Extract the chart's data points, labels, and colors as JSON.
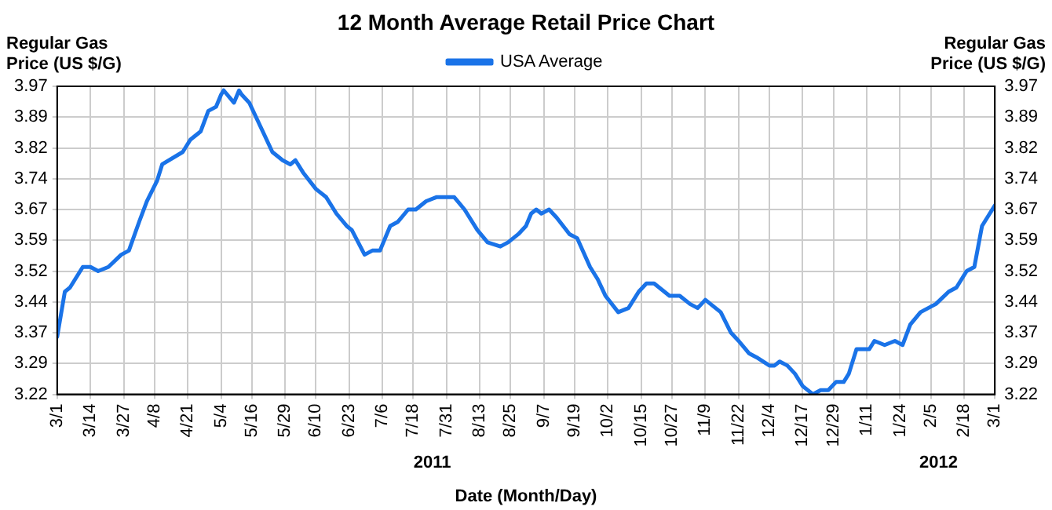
{
  "chart_data": {
    "type": "line",
    "title": "12 Month Average Retail Price Chart",
    "ylabel": "Regular Gas\nPrice (US $/G)",
    "y2label": "Regular Gas\nPrice (US $/G)",
    "xlabel": "Date (Month/Day)",
    "legend": "top",
    "grid": true,
    "marker": "none",
    "line_style": "solid",
    "xlim": [
      "2011-03-01",
      "2012-03-01"
    ],
    "xticks": [
      {
        "value": "2011-03-01",
        "label": "3/1"
      },
      {
        "value": "2011-03-14",
        "label": "3/14"
      },
      {
        "value": "2011-03-27",
        "label": "3/27"
      },
      {
        "value": "2011-04-08",
        "label": "4/8"
      },
      {
        "value": "2011-04-21",
        "label": "4/21"
      },
      {
        "value": "2011-05-04",
        "label": "5/4"
      },
      {
        "value": "2011-05-16",
        "label": "5/16"
      },
      {
        "value": "2011-05-29",
        "label": "5/29"
      },
      {
        "value": "2011-06-10",
        "label": "6/10"
      },
      {
        "value": "2011-06-23",
        "label": "6/23"
      },
      {
        "value": "2011-07-06",
        "label": "7/6"
      },
      {
        "value": "2011-07-18",
        "label": "7/18"
      },
      {
        "value": "2011-07-31",
        "label": "7/31"
      },
      {
        "value": "2011-08-13",
        "label": "8/13"
      },
      {
        "value": "2011-08-25",
        "label": "8/25"
      },
      {
        "value": "2011-09-07",
        "label": "9/7"
      },
      {
        "value": "2011-09-19",
        "label": "9/19"
      },
      {
        "value": "2011-10-02",
        "label": "10/2"
      },
      {
        "value": "2011-10-15",
        "label": "10/15"
      },
      {
        "value": "2011-10-27",
        "label": "10/27"
      },
      {
        "value": "2011-11-09",
        "label": "11/9"
      },
      {
        "value": "2011-11-22",
        "label": "11/22"
      },
      {
        "value": "2011-12-04",
        "label": "12/4"
      },
      {
        "value": "2011-12-17",
        "label": "12/17"
      },
      {
        "value": "2011-12-29",
        "label": "12/29"
      },
      {
        "value": "2012-01-11",
        "label": "1/11"
      },
      {
        "value": "2012-01-24",
        "label": "1/24"
      },
      {
        "value": "2012-02-05",
        "label": "2/5"
      },
      {
        "value": "2012-02-18",
        "label": "2/18"
      },
      {
        "value": "2012-03-01",
        "label": "3/1"
      }
    ],
    "ylim": [
      3.22,
      3.97
    ],
    "yticks": [
      3.22,
      {
        "value": 3.295,
        "label": "3.29"
      },
      3.37,
      {
        "value": 3.445,
        "label": "3.44"
      },
      3.52,
      {
        "value": 3.595,
        "label": "3.59"
      },
      3.67,
      {
        "value": 3.745,
        "label": "3.74"
      },
      3.82,
      {
        "value": 3.895,
        "label": "3.89"
      },
      3.97
    ],
    "y2lim": [
      3.22,
      3.97
    ],
    "y2ticks": [
      3.22,
      {
        "value": 3.295,
        "label": "3.29"
      },
      3.37,
      {
        "value": 3.445,
        "label": "3.44"
      },
      3.52,
      {
        "value": 3.595,
        "label": "3.59"
      },
      3.67,
      {
        "value": 3.745,
        "label": "3.74"
      },
      3.82,
      {
        "value": 3.895,
        "label": "3.89"
      },
      3.97
    ],
    "annotations": [
      "2011",
      "2012"
    ],
    "series": [
      {
        "name": "USA Average",
        "color": "#1a73e8",
        "x": [
          "2011-03-01",
          "2011-03-04",
          "2011-03-06",
          "2011-03-11",
          "2011-03-14",
          "2011-03-17",
          "2011-03-21",
          "2011-03-26",
          "2011-03-29",
          "2011-04-02",
          "2011-04-05",
          "2011-04-09",
          "2011-04-11",
          "2011-04-19",
          "2011-04-22",
          "2011-04-26",
          "2011-04-29",
          "2011-05-02",
          "2011-05-04",
          "2011-05-05",
          "2011-05-09",
          "2011-05-11",
          "2011-05-12",
          "2011-05-15",
          "2011-05-21",
          "2011-05-24",
          "2011-05-28",
          "2011-05-31",
          "2011-06-02",
          "2011-06-05",
          "2011-06-10",
          "2011-06-14",
          "2011-06-18",
          "2011-06-22",
          "2011-06-24",
          "2011-06-29",
          "2011-07-02",
          "2011-07-05",
          "2011-07-09",
          "2011-07-12",
          "2011-07-16",
          "2011-07-19",
          "2011-07-23",
          "2011-07-27",
          "2011-07-29",
          "2011-08-03",
          "2011-08-07",
          "2011-08-12",
          "2011-08-16",
          "2011-08-21",
          "2011-08-24",
          "2011-08-28",
          "2011-08-31",
          "2011-09-02",
          "2011-09-04",
          "2011-09-06",
          "2011-09-09",
          "2011-09-12",
          "2011-09-17",
          "2011-09-20",
          "2011-09-25",
          "2011-09-28",
          "2011-10-01",
          "2011-10-06",
          "2011-10-10",
          "2011-10-14",
          "2011-10-17",
          "2011-10-20",
          "2011-10-26",
          "2011-10-30",
          "2011-11-03",
          "2011-11-06",
          "2011-11-09",
          "2011-11-15",
          "2011-11-19",
          "2011-11-22",
          "2011-11-26",
          "2011-11-29",
          "2011-12-04",
          "2011-12-06",
          "2011-12-08",
          "2011-12-11",
          "2011-12-14",
          "2011-12-17",
          "2011-12-21",
          "2011-12-24",
          "2011-12-27",
          "2011-12-30",
          "2012-01-02",
          "2012-01-04",
          "2012-01-07",
          "2012-01-09",
          "2012-01-12",
          "2012-01-14",
          "2012-01-18",
          "2012-01-22",
          "2012-01-25",
          "2012-01-28",
          "2012-02-01",
          "2012-02-04",
          "2012-02-07",
          "2012-02-12",
          "2012-02-15",
          "2012-02-19",
          "2012-02-22",
          "2012-02-25",
          "2012-02-27",
          "2012-03-01"
        ],
        "values": [
          3.36,
          3.47,
          3.48,
          3.53,
          3.53,
          3.52,
          3.53,
          3.56,
          3.57,
          3.64,
          3.69,
          3.74,
          3.78,
          3.81,
          3.84,
          3.86,
          3.91,
          3.92,
          3.95,
          3.96,
          3.93,
          3.96,
          3.95,
          3.93,
          3.85,
          3.81,
          3.79,
          3.78,
          3.79,
          3.76,
          3.72,
          3.7,
          3.66,
          3.63,
          3.62,
          3.56,
          3.57,
          3.57,
          3.63,
          3.64,
          3.67,
          3.67,
          3.69,
          3.7,
          3.7,
          3.7,
          3.67,
          3.62,
          3.59,
          3.58,
          3.59,
          3.61,
          3.63,
          3.66,
          3.67,
          3.66,
          3.67,
          3.65,
          3.61,
          3.6,
          3.53,
          3.5,
          3.46,
          3.42,
          3.43,
          3.47,
          3.49,
          3.49,
          3.46,
          3.46,
          3.44,
          3.43,
          3.45,
          3.42,
          3.37,
          3.35,
          3.32,
          3.31,
          3.29,
          3.29,
          3.3,
          3.29,
          3.27,
          3.24,
          3.22,
          3.23,
          3.23,
          3.25,
          3.25,
          3.27,
          3.33,
          3.33,
          3.33,
          3.35,
          3.34,
          3.35,
          3.34,
          3.39,
          3.42,
          3.43,
          3.44,
          3.47,
          3.48,
          3.52,
          3.53,
          3.63,
          3.65,
          3.68
        ]
      }
    ]
  }
}
